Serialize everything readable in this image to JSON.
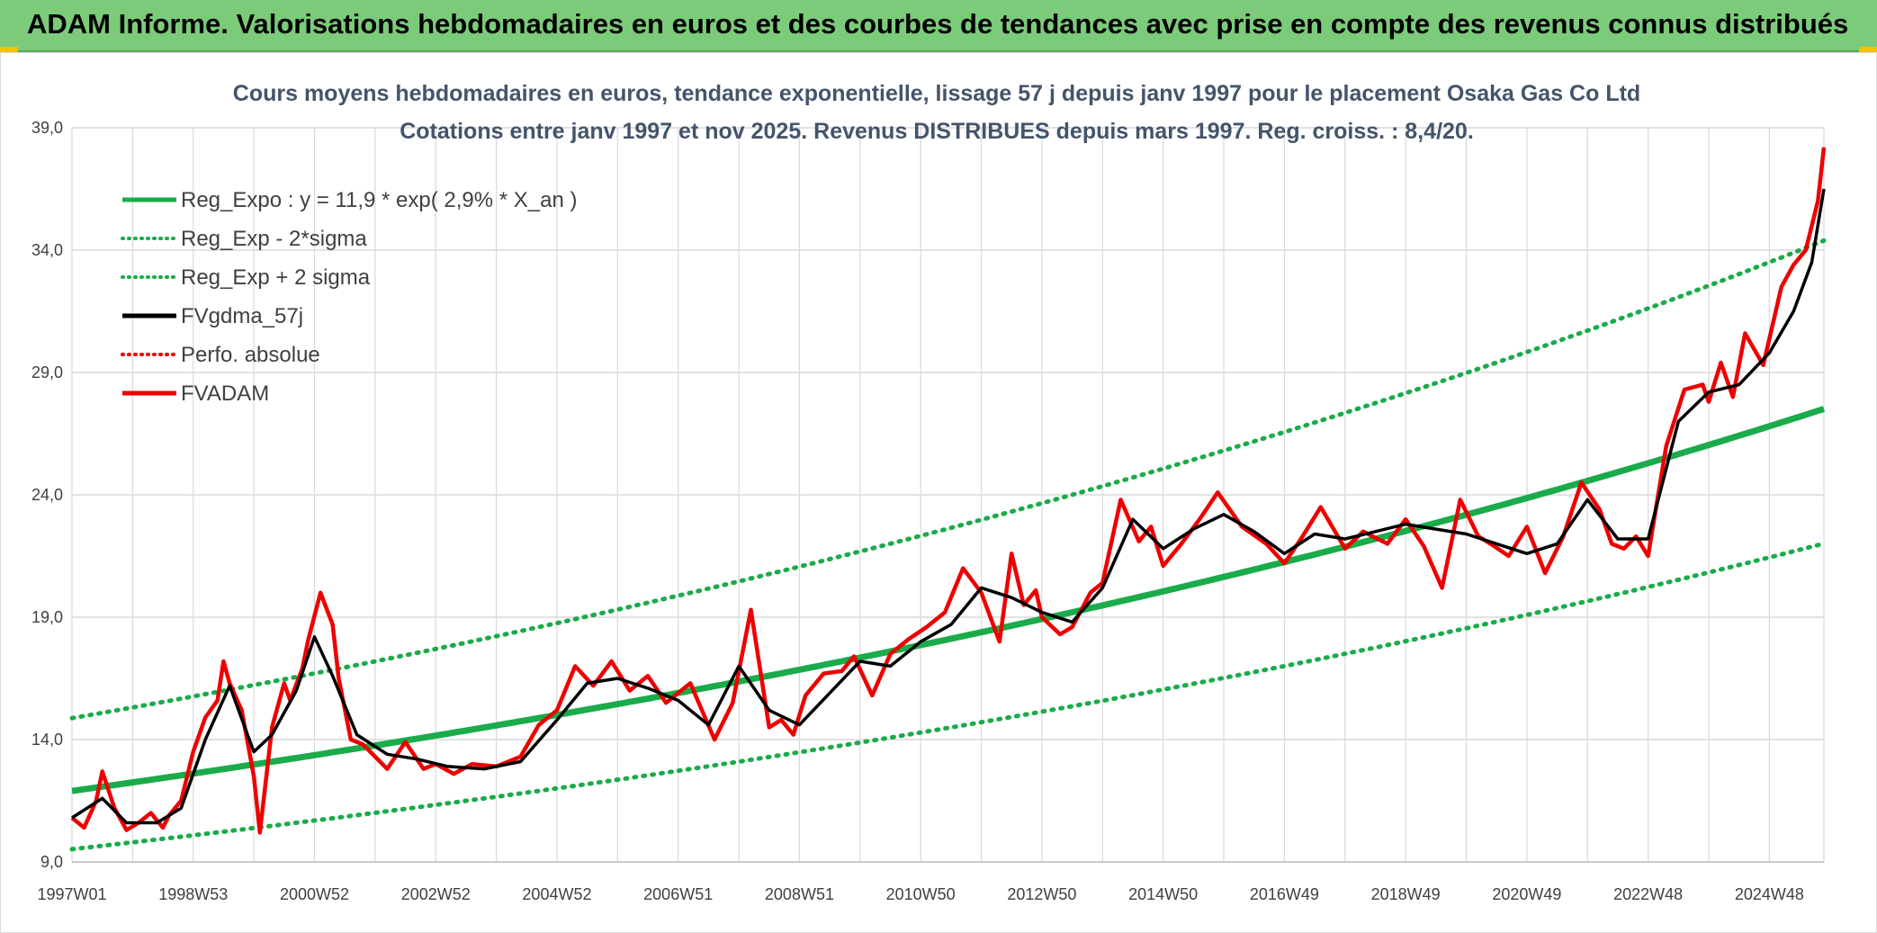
{
  "header": {
    "title": "ADAM Informe. Valorisations hebdomadaires en euros et des courbes de tendances avec prise en compte des revenus connus distribués"
  },
  "colors": {
    "banner": "#7ccb7a",
    "reg_green": "#1aab4a",
    "fvadam_red": "#ee0000",
    "gdma_black": "#000000",
    "grid": "#d9d9d9"
  },
  "chart_data": {
    "type": "line",
    "title_line1": "Cours moyens hebdomadaires en euros, tendance exponentielle, lissage 57 j depuis janv 1997 pour le placement Osaka Gas Co Ltd",
    "title_line2": "Cotations entre janv 1997 et nov 2025. Revenus DISTRIBUES depuis mars 1997. Reg. croiss. : 8,4/20.",
    "xlabel": "",
    "ylabel": "",
    "xlim": [
      1997.0,
      2025.9
    ],
    "ylim": [
      9.0,
      39.0
    ],
    "y_ticks": [
      "9,0",
      "14,0",
      "19,0",
      "24,0",
      "29,0",
      "34,0",
      "39,0"
    ],
    "y_tick_values": [
      9,
      14,
      19,
      24,
      29,
      34,
      39
    ],
    "x_ticks": [
      "1997W01",
      "1998W53",
      "2000W52",
      "2002W52",
      "2004W52",
      "2006W51",
      "2008W51",
      "2010W50",
      "2012W50",
      "2014W50",
      "2016W49",
      "2018W49",
      "2020W49",
      "2022W48",
      "2024W48"
    ],
    "x_tick_values": [
      1997.0,
      1999.0,
      2001.0,
      2003.0,
      2005.0,
      2007.0,
      2009.0,
      2011.0,
      2013.0,
      2015.0,
      2017.0,
      2019.0,
      2021.0,
      2023.0,
      2025.0
    ],
    "legend": [
      {
        "label": "Reg_Expo : y = 11,9 * exp( 2,9% *  X_an )",
        "color": "#1aab4a",
        "style": "solid"
      },
      {
        "label": "Reg_Exp - 2*sigma",
        "color": "#1aab4a",
        "style": "dotted"
      },
      {
        "label": "Reg_Exp + 2 sigma",
        "color": "#1aab4a",
        "style": "dotted"
      },
      {
        "label": "FVgdma_57j",
        "color": "#000000",
        "style": "solid"
      },
      {
        "label": "Perfo. absolue",
        "color": "#ee0000",
        "style": "dotted"
      },
      {
        "label": "FVADAM",
        "color": "#ee0000",
        "style": "solid"
      }
    ],
    "legend_placement": "top-left",
    "grid": true,
    "regression": {
      "a": 11.9,
      "rate": 0.029,
      "start": 1997.0,
      "lower_factor": 0.8,
      "upper_factor": 1.25
    },
    "series": [
      {
        "name": "FVADAM",
        "x": [
          1997.0,
          1997.2,
          1997.4,
          1997.5,
          1997.7,
          1997.9,
          1998.1,
          1998.3,
          1998.5,
          1998.6,
          1998.8,
          1999.0,
          1999.2,
          1999.4,
          1999.5,
          1999.6,
          1999.8,
          2000.0,
          2000.1,
          2000.3,
          2000.5,
          2000.6,
          2000.8,
          2000.9,
          2001.1,
          2001.3,
          2001.4,
          2001.6,
          2001.8,
          2002.0,
          2002.2,
          2002.5,
          2002.8,
          2003.0,
          2003.3,
          2003.6,
          2004.0,
          2004.4,
          2004.7,
          2005.0,
          2005.3,
          2005.6,
          2005.9,
          2006.2,
          2006.5,
          2006.8,
          2007.2,
          2007.6,
          2007.9,
          2008.2,
          2008.5,
          2008.7,
          2008.9,
          2009.1,
          2009.4,
          2009.7,
          2009.9,
          2010.2,
          2010.5,
          2010.8,
          2011.1,
          2011.4,
          2011.7,
          2012.0,
          2012.3,
          2012.5,
          2012.7,
          2012.9,
          2013.0,
          2013.3,
          2013.5,
          2013.8,
          2014.0,
          2014.3,
          2014.6,
          2014.8,
          2015.0,
          2015.3,
          2015.6,
          2015.9,
          2016.3,
          2016.7,
          2017.0,
          2017.3,
          2017.6,
          2018.0,
          2018.3,
          2018.7,
          2019.0,
          2019.3,
          2019.6,
          2019.9,
          2020.2,
          2020.4,
          2020.7,
          2021.0,
          2021.3,
          2021.6,
          2021.9,
          2022.2,
          2022.4,
          2022.6,
          2022.8,
          2023.0,
          2023.3,
          2023.6,
          2023.9,
          2024.0,
          2024.2,
          2024.4,
          2024.6,
          2024.9,
          2025.2,
          2025.4,
          2025.6,
          2025.8,
          2025.9
        ],
        "values": [
          10.8,
          10.4,
          11.5,
          12.7,
          11.2,
          10.3,
          10.6,
          11.0,
          10.4,
          10.9,
          11.5,
          13.5,
          14.9,
          15.6,
          17.2,
          16.3,
          15.2,
          12.5,
          10.2,
          14.5,
          16.3,
          15.6,
          16.9,
          18.1,
          20.0,
          18.7,
          16.5,
          14.0,
          13.8,
          13.3,
          12.8,
          13.9,
          12.8,
          13.0,
          12.6,
          13.0,
          12.9,
          13.3,
          14.6,
          15.2,
          17.0,
          16.2,
          17.2,
          16.0,
          16.6,
          15.5,
          16.3,
          14.0,
          15.5,
          19.3,
          14.5,
          14.8,
          14.2,
          15.8,
          16.7,
          16.8,
          17.4,
          15.8,
          17.5,
          18.1,
          18.6,
          19.2,
          21.0,
          20.0,
          18.0,
          21.6,
          19.5,
          20.1,
          19.0,
          18.3,
          18.6,
          20.0,
          20.4,
          23.8,
          22.1,
          22.7,
          21.1,
          22.0,
          23.0,
          24.1,
          22.7,
          22.0,
          21.2,
          22.3,
          23.5,
          21.8,
          22.5,
          22.0,
          23.0,
          21.9,
          20.2,
          23.8,
          22.3,
          22.0,
          21.5,
          22.7,
          20.8,
          22.3,
          24.5,
          23.4,
          22.0,
          21.8,
          22.3,
          21.5,
          26.0,
          28.3,
          28.5,
          27.8,
          29.4,
          28.0,
          30.6,
          29.3,
          32.5,
          33.4,
          34.0,
          36.0,
          38.2
        ]
      },
      {
        "name": "FVgdma_57j",
        "x": [
          1997.0,
          1997.5,
          1997.9,
          1998.4,
          1998.8,
          1999.2,
          1999.6,
          2000.0,
          2000.3,
          2000.7,
          2001.0,
          2001.3,
          2001.7,
          2002.2,
          2002.7,
          2003.2,
          2003.8,
          2004.4,
          2005.0,
          2005.5,
          2006.0,
          2006.5,
          2007.0,
          2007.5,
          2008.0,
          2008.5,
          2009.0,
          2009.5,
          2010.0,
          2010.5,
          2011.0,
          2011.5,
          2012.0,
          2012.5,
          2013.0,
          2013.5,
          2014.0,
          2014.5,
          2015.0,
          2015.5,
          2016.0,
          2016.5,
          2017.0,
          2017.5,
          2018.0,
          2018.5,
          2019.0,
          2019.5,
          2020.0,
          2020.5,
          2021.0,
          2021.5,
          2022.0,
          2022.5,
          2023.0,
          2023.5,
          2024.0,
          2024.5,
          2025.0,
          2025.4,
          2025.7,
          2025.9
        ],
        "values": [
          10.8,
          11.6,
          10.6,
          10.6,
          11.2,
          14.0,
          16.2,
          13.5,
          14.2,
          16.0,
          18.2,
          16.6,
          14.2,
          13.4,
          13.2,
          12.9,
          12.8,
          13.1,
          14.8,
          16.3,
          16.5,
          16.1,
          15.6,
          14.6,
          17.0,
          15.2,
          14.6,
          15.9,
          17.2,
          17.0,
          18.0,
          18.7,
          20.2,
          19.8,
          19.2,
          18.8,
          20.2,
          23.0,
          21.8,
          22.6,
          23.2,
          22.5,
          21.6,
          22.4,
          22.2,
          22.5,
          22.8,
          22.6,
          22.4,
          22.0,
          21.6,
          22.0,
          23.8,
          22.2,
          22.2,
          27.0,
          28.2,
          28.5,
          29.8,
          31.5,
          33.5,
          36.5
        ]
      }
    ]
  }
}
